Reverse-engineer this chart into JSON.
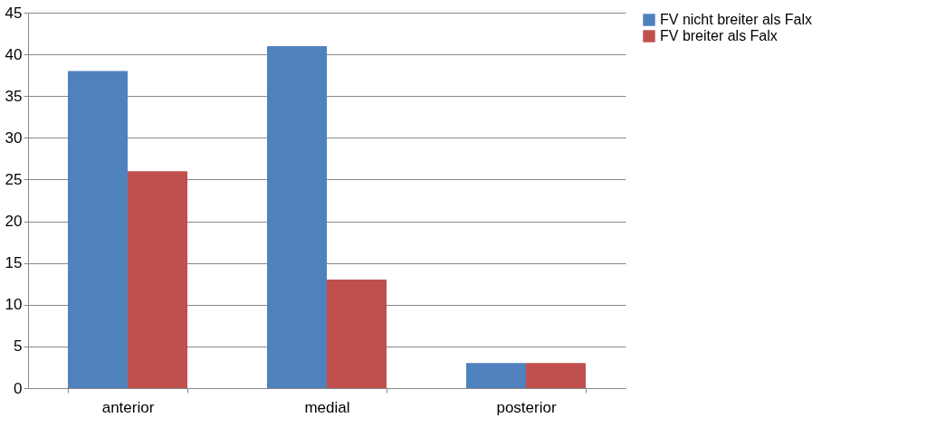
{
  "chart_data": {
    "type": "bar",
    "categories": [
      "anterior",
      "medial",
      "posterior"
    ],
    "series": [
      {
        "name": "FV nicht breiter als Falx",
        "color": "#4f81bd",
        "values": [
          38,
          41,
          3
        ]
      },
      {
        "name": "FV breiter als Falx",
        "color": "#c0504d",
        "values": [
          26,
          13,
          3
        ]
      }
    ],
    "ylim": [
      0,
      45
    ],
    "yticks": [
      0,
      5,
      10,
      15,
      20,
      25,
      30,
      35,
      40,
      45
    ],
    "grid": "y",
    "legend": "right"
  }
}
